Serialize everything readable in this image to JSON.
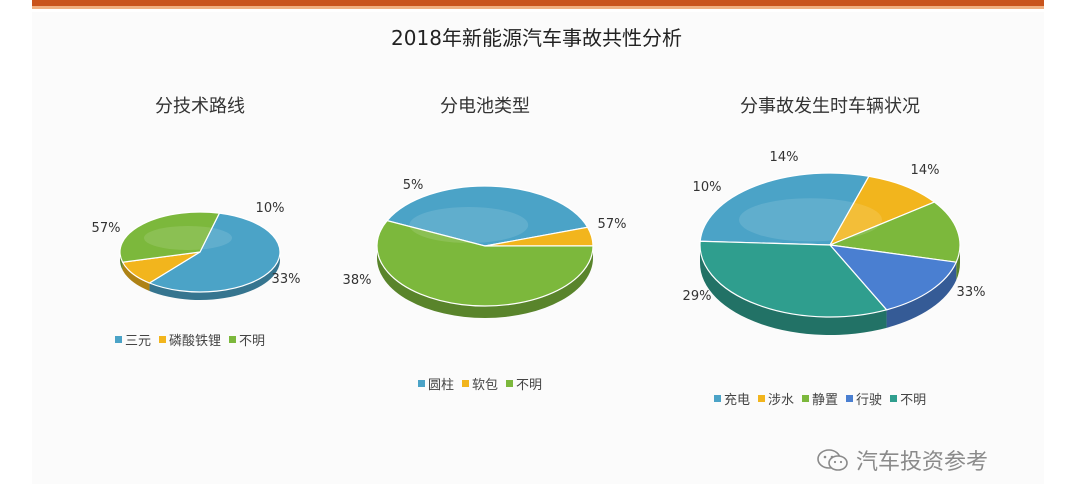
{
  "title": "2018年新能源汽车事故共性分析",
  "watermark": "汽车投资参考",
  "chart_data": [
    {
      "type": "pie",
      "title": "分技术路线",
      "categories": [
        "三元",
        "磷酸铁锂",
        "不明"
      ],
      "values": [
        57,
        10,
        33
      ],
      "labels": [
        "57%",
        "10%",
        "33%"
      ],
      "colors": [
        "#4ba3c7",
        "#f2b51d",
        "#7cb83c"
      ],
      "legend": "bottom"
    },
    {
      "type": "pie",
      "title": "分电池类型",
      "categories": [
        "圆柱",
        "软包",
        "不明"
      ],
      "values": [
        38,
        5,
        57
      ],
      "labels": [
        "38%",
        "5%",
        "57%"
      ],
      "colors": [
        "#4ba3c7",
        "#f2b51d",
        "#7cb83c"
      ],
      "legend": "bottom"
    },
    {
      "type": "pie",
      "title": "分事故发生时车辆状况",
      "categories": [
        "充电",
        "涉水",
        "静置",
        "行驶",
        "不明"
      ],
      "values": [
        29,
        10,
        14,
        14,
        33
      ],
      "labels": [
        "29%",
        "10%",
        "14%",
        "14%",
        "33%"
      ],
      "colors": [
        "#4ba3c7",
        "#f2b51d",
        "#7cb83c",
        "#4a7fd1",
        "#2f9e8e"
      ],
      "legend": "bottom"
    }
  ]
}
